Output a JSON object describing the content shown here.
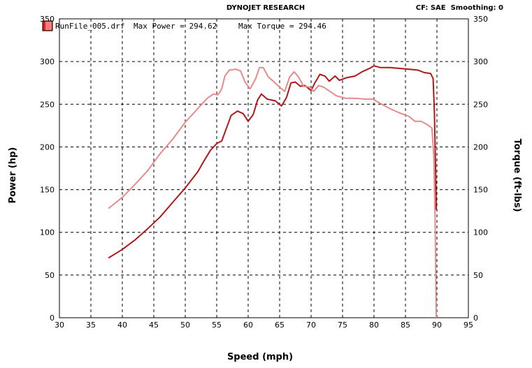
{
  "header": {
    "title": "DYNOJET RESEARCH",
    "settings": "CF: SAE  Smoothing: 0"
  },
  "legend": {
    "run_file": "RunFile_005.drf",
    "max_power": "Max Power = 294.62",
    "max_torque": "Max Torque = 294.46"
  },
  "colors": {
    "power": "#b01818",
    "torque": "#e88a8a",
    "grid": "#000000"
  },
  "chart_data": {
    "type": "line",
    "xlabel": "Speed (mph)",
    "ylabel_left": "Power (hp)",
    "ylabel_right": "Torque (ft-lbs)",
    "xlim": [
      30,
      95
    ],
    "ylim": [
      0,
      350
    ],
    "x_ticks": [
      30,
      35,
      40,
      45,
      50,
      55,
      60,
      65,
      70,
      75,
      80,
      85,
      90,
      95
    ],
    "y_ticks": [
      0,
      50,
      100,
      150,
      200,
      250,
      300,
      350
    ],
    "grid": true,
    "series": [
      {
        "key": "power",
        "points": [
          [
            37.8,
            70
          ],
          [
            40,
            80
          ],
          [
            42,
            91
          ],
          [
            44,
            104
          ],
          [
            46,
            118
          ],
          [
            48,
            135
          ],
          [
            50,
            152
          ],
          [
            52,
            171
          ],
          [
            53,
            184
          ],
          [
            54,
            196
          ],
          [
            55,
            204
          ],
          [
            55.8,
            207
          ],
          [
            56.5,
            221
          ],
          [
            57.3,
            237
          ],
          [
            58.3,
            242
          ],
          [
            59.2,
            239
          ],
          [
            60,
            230
          ],
          [
            60.8,
            238
          ],
          [
            61.5,
            255
          ],
          [
            62.1,
            262
          ],
          [
            63,
            256
          ],
          [
            64.3,
            254
          ],
          [
            65.3,
            248
          ],
          [
            66.1,
            258
          ],
          [
            66.8,
            275
          ],
          [
            67.5,
            276
          ],
          [
            68.3,
            271
          ],
          [
            69,
            272
          ],
          [
            70,
            266
          ],
          [
            70.6,
            275
          ],
          [
            71.4,
            285
          ],
          [
            72.2,
            283
          ],
          [
            72.9,
            277
          ],
          [
            73.8,
            283
          ],
          [
            74.5,
            278
          ],
          [
            75.6,
            281
          ],
          [
            77,
            283
          ],
          [
            78.1,
            288
          ],
          [
            79.3,
            292
          ],
          [
            80,
            295
          ],
          [
            81,
            293
          ],
          [
            82.5,
            293
          ],
          [
            84,
            292
          ],
          [
            85.5,
            291
          ],
          [
            87,
            290
          ],
          [
            88,
            287
          ],
          [
            89,
            286
          ],
          [
            89.4,
            280
          ],
          [
            89.6,
            240
          ],
          [
            89.8,
            170
          ],
          [
            89.9,
            126
          ]
        ]
      },
      {
        "key": "torque",
        "points": [
          [
            37.8,
            128
          ],
          [
            40,
            141
          ],
          [
            42,
            156
          ],
          [
            44,
            172
          ],
          [
            46,
            192
          ],
          [
            48,
            209
          ],
          [
            50,
            229
          ],
          [
            52,
            245
          ],
          [
            53.5,
            257
          ],
          [
            54.5,
            262
          ],
          [
            55.2,
            261
          ],
          [
            55.8,
            268
          ],
          [
            56.3,
            283
          ],
          [
            57,
            290
          ],
          [
            58,
            291
          ],
          [
            58.8,
            289
          ],
          [
            59.5,
            276
          ],
          [
            60.3,
            268
          ],
          [
            61.2,
            280
          ],
          [
            61.8,
            293
          ],
          [
            62.4,
            293
          ],
          [
            63.2,
            282
          ],
          [
            64,
            277
          ],
          [
            65,
            270
          ],
          [
            65.8,
            265
          ],
          [
            66.6,
            282
          ],
          [
            67.3,
            288
          ],
          [
            68,
            282
          ],
          [
            68.8,
            271
          ],
          [
            69.8,
            270
          ],
          [
            70.4,
            265
          ],
          [
            71.2,
            272
          ],
          [
            72,
            270
          ],
          [
            73,
            265
          ],
          [
            74,
            260
          ],
          [
            75.5,
            257
          ],
          [
            77,
            257
          ],
          [
            78.5,
            256
          ],
          [
            79.8,
            256
          ],
          [
            81,
            251
          ],
          [
            82.5,
            245
          ],
          [
            84,
            240
          ],
          [
            85.5,
            236
          ],
          [
            86.5,
            230
          ],
          [
            87.5,
            230
          ],
          [
            88.5,
            226
          ],
          [
            89.2,
            222
          ],
          [
            89.5,
            190
          ],
          [
            89.7,
            120
          ],
          [
            89.8,
            60
          ],
          [
            89.9,
            0
          ]
        ]
      }
    ]
  }
}
